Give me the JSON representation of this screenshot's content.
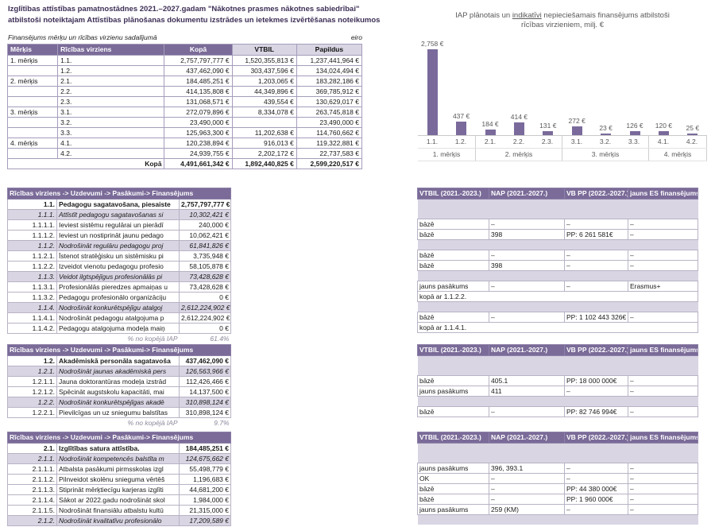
{
  "document": {
    "title_line1": "Izglītības attīstības pamatnostādnes 2021.–2027.gadam \"Nākotnes prasmes nākotnes sabiedrībai\"",
    "title_line2": "atbilstoši  noteiktajam Attīstības plānošanas dokumentu izstrādes un ietekmes izvērtēšanas noteikumos"
  },
  "summary_table": {
    "caption": "Finansējums mērķu un rīcības virzienu sadalījumā",
    "unit_note": "eiro",
    "headers": [
      "Mērķis",
      "Rīcības virziens",
      "Kopā",
      "VTBIL",
      "Papildus"
    ],
    "rows": [
      [
        "1. mērķis",
        "1.1.",
        "2,757,797,777 €",
        "1,520,355,813 €",
        "1,237,441,964 €"
      ],
      [
        "",
        "1.2.",
        "437,462,090 €",
        "303,437,596 €",
        "134,024,494 €"
      ],
      [
        "2. mērķis",
        "2.1.",
        "184,485,251 €",
        "1,203,065 €",
        "183,282,186 €"
      ],
      [
        "",
        "2.2.",
        "414,135,808 €",
        "44,349,896 €",
        "369,785,912 €"
      ],
      [
        "",
        "2.3.",
        "131,068,571 €",
        "439,554 €",
        "130,629,017 €"
      ],
      [
        "3. mērķis",
        "3.1.",
        "272,079,896 €",
        "8,334,078 €",
        "263,745,818 €"
      ],
      [
        "",
        "3.2.",
        "23,490,000 €",
        "",
        "23,490,000 €"
      ],
      [
        "",
        "3.3.",
        "125,963,300 €",
        "11,202,638 €",
        "114,760,662 €"
      ],
      [
        "4. mērķis",
        "4.1.",
        "120,238,894 €",
        "916,013 €",
        "119,322,881 €"
      ],
      [
        "",
        "4.2.",
        "24,939,755 €",
        "2,202,172 €",
        "22,737,583 €"
      ]
    ],
    "total_row": {
      "label": "Kopā",
      "values": [
        "4,491,661,342 €",
        "1,892,440,825 €",
        "2,599,220,517 €"
      ]
    }
  },
  "chart_data": {
    "type": "bar",
    "title_pre": "IAP plānotais un ",
    "title_underlined": "indikatīvi",
    "title_post": " nepieciešamais finansējums atbilstoši",
    "title_line2": "rīcības virzieniem, milj. €",
    "categories": [
      "1.1.",
      "1.2.",
      "2.1.",
      "2.2.",
      "2.3.",
      "3.1.",
      "3.2.",
      "3.3.",
      "4.1.",
      "4.2."
    ],
    "values": [
      2758,
      437,
      184,
      414,
      131,
      272,
      23,
      126,
      120,
      25
    ],
    "value_labels": [
      "2,758 €",
      "437 €",
      "184 €",
      "414 €",
      "131 €",
      "272 €",
      "23 €",
      "126 €",
      "120 €",
      "25 €"
    ],
    "groups": [
      {
        "label": "1. mērķis",
        "span": 2
      },
      {
        "label": "2. mērķis",
        "span": 3
      },
      {
        "label": "3. mērķis",
        "span": 3
      },
      {
        "label": "4. mērķis",
        "span": 2
      }
    ],
    "ylim": [
      0,
      2758
    ],
    "legend": "none",
    "bar_color": "#7a6a9b"
  },
  "detail_headers": {
    "left": "Rīcības virziens -> Uzdevumi -> Pasākumi-> Finansējums",
    "right": [
      "VTBIL (2021.-2023.)",
      "NAP (2021.-2027.)",
      "VB PP (2022.-2027.)",
      "jauns ES finansējums"
    ]
  },
  "blocks": [
    {
      "rows": [
        {
          "num": "1.1.",
          "desc": "Pedagogu sagatavošana, piesaiste",
          "amount": "2,757,797,777 €",
          "style": "main",
          "right": {
            "type": "shaded"
          }
        },
        {
          "num": "1.1.1.",
          "desc": "Attīstīt pedagogu sagatavošanas si",
          "amount": "10,302,421 €",
          "style": "sub",
          "right": {
            "type": "shaded"
          }
        },
        {
          "num": "1.1.1.1.",
          "desc": "Ieviest sistēmu regulārai un pierādī",
          "amount": "240,000 €",
          "style": "leaf",
          "right": {
            "type": "cells",
            "cells": [
              "bāzē",
              "–",
              "–",
              "–"
            ]
          }
        },
        {
          "num": "1.1.1.2.",
          "desc": "Ieviest un nostiprināt jaunu pedago",
          "amount": "10,062,421 €",
          "style": "leaf",
          "right": {
            "type": "cells",
            "cells": [
              "bāzē",
              "398",
              "PP: 6 261 581€",
              "–"
            ]
          }
        },
        {
          "num": "1.1.2.",
          "desc": "Nodrošināt regulāru pedagogu proj",
          "amount": "61,841,826 €",
          "style": "sub",
          "right": {
            "type": "shaded"
          }
        },
        {
          "num": "1.1.2.1.",
          "desc": "Īstenot stratēģisku un sistēmisku pi",
          "amount": "3,735,948 €",
          "style": "leaf",
          "right": {
            "type": "cells",
            "cells": [
              "bāzē",
              "–",
              "–",
              "–"
            ]
          }
        },
        {
          "num": "1.1.2.2.",
          "desc": "Izveidot vienotu pedagogu profesio",
          "amount": "58,105,878 €",
          "style": "leaf",
          "right": {
            "type": "cells",
            "cells": [
              "bāzē",
              "398",
              "–",
              "–"
            ]
          }
        },
        {
          "num": "1.1.3.",
          "desc": "Veidot ilgtspējīgus profesionālās pi",
          "amount": "73,428,628 €",
          "style": "sub",
          "right": {
            "type": "shaded"
          }
        },
        {
          "num": "1.1.3.1.",
          "desc": "Profesionālās pieredzes apmaiņas u",
          "amount": "73,428,628 €",
          "style": "leaf",
          "right": {
            "type": "cells",
            "cells": [
              "jauns pasākums",
              "–",
              "–",
              "Erasmus+"
            ]
          }
        },
        {
          "num": "1.1.3.2.",
          "desc": "Pedagogu profesionālo organizāciju",
          "amount": "0 €",
          "style": "leaf",
          "right": {
            "type": "span",
            "text": "kopā ar 1.1.2.2."
          }
        },
        {
          "num": "1.1.4.",
          "desc": "Nodrošināt konkurētspējīgu atalgoj",
          "amount": "2,612,224,902 €",
          "style": "sub",
          "right": {
            "type": "shaded"
          }
        },
        {
          "num": "1.1.4.1.",
          "desc": "Nodrošināt pedagogu atalgojuma p",
          "amount": "2,612,224,902 €",
          "style": "leaf",
          "right": {
            "type": "cells",
            "cells": [
              "bāzē",
              "–",
              "PP: 1 102 443 326€ (",
              "–"
            ]
          }
        },
        {
          "num": "1.1.4.2.",
          "desc": "Pedagogu atalgojuma modeļa maiņ",
          "amount": "0 €",
          "style": "leaf",
          "right": {
            "type": "span",
            "text": "kopā ar 1.1.4.1."
          }
        }
      ],
      "footer": {
        "label": "% no kopējā IAP",
        "value": "61.4%"
      }
    },
    {
      "rows": [
        {
          "num": "1.2.",
          "desc": "Akadēmiskā personāla sagatavoša",
          "amount": "437,462,090 €",
          "style": "main",
          "right": {
            "type": "shaded"
          }
        },
        {
          "num": "1.2.1.",
          "desc": "Nodrošināt jaunas akadēmiskā pers",
          "amount": "126,563,966 €",
          "style": "sub",
          "right": {
            "type": "shaded"
          }
        },
        {
          "num": "1.2.1.1.",
          "desc": "Jauna doktorantūras modeļa izstrād",
          "amount": "112,426,466 €",
          "style": "leaf",
          "right": {
            "type": "cells",
            "cells": [
              "bāzē",
              "405.1",
              "PP: 18 000 000€",
              "–"
            ]
          }
        },
        {
          "num": "1.2.1.2.",
          "desc": "Spēcināt augstskolu kapacitāti, mai",
          "amount": "14,137,500 €",
          "style": "leaf",
          "right": {
            "type": "cells",
            "cells": [
              "jauns pasākums",
              "411",
              "–",
              "–"
            ]
          }
        },
        {
          "num": "1.2.2.",
          "desc": "Nodrošināt konkurētspējīgas akadē",
          "amount": "310,898,124 €",
          "style": "sub",
          "right": {
            "type": "shaded"
          }
        },
        {
          "num": "1.2.2.1.",
          "desc": "Pievilcīgas un uz sniegumu balstītas",
          "amount": "310,898,124 €",
          "style": "leaf",
          "right": {
            "type": "cells",
            "cells": [
              "bāzē",
              "–",
              "PP: 82 746 994€",
              "–"
            ]
          }
        }
      ],
      "footer": {
        "label": "% no kopējā IAP",
        "value": "9.7%"
      }
    },
    {
      "rows": [
        {
          "num": "2.1.",
          "desc": "Izglītības satura attīstība.",
          "amount": "184,485,251 €",
          "style": "main",
          "right": {
            "type": "shaded"
          }
        },
        {
          "num": "2.1.1.",
          "desc": "Nodrošināt kompetencēs balstīta m",
          "amount": "124,675,662 €",
          "style": "sub",
          "right": {
            "type": "shaded"
          }
        },
        {
          "num": "2.1.1.1.",
          "desc": "Atbalsta pasākumi  pirmsskolas izgl",
          "amount": "55,498,779 €",
          "style": "leaf",
          "right": {
            "type": "cells",
            "cells": [
              "jauns pasākums",
              "396, 393.1",
              "–",
              "–"
            ]
          }
        },
        {
          "num": "2.1.1.2.",
          "desc": "Pilnveidot skolēnu snieguma vērtēš",
          "amount": "1,196,683 €",
          "style": "leaf",
          "right": {
            "type": "cells",
            "cells": [
              "OK",
              "–",
              "–",
              "–"
            ]
          }
        },
        {
          "num": "2.1.1.3.",
          "desc": "Stiprināt mērķtiecīgu karjeras izglīti",
          "amount": "44,681,200 €",
          "style": "leaf",
          "right": {
            "type": "cells",
            "cells": [
              "bāzē",
              "–",
              "PP: 44 380 000€",
              "–"
            ]
          }
        },
        {
          "num": "2.1.1.4.",
          "desc": "Sākot ar 2022.gadu nodrošināt skol",
          "amount": "1,984,000 €",
          "style": "leaf",
          "right": {
            "type": "cells",
            "cells": [
              "bāzē",
              "–",
              "PP: 1 960 000€",
              "–"
            ]
          }
        },
        {
          "num": "2.1.1.5.",
          "desc": "Nodrošināt finansiālu atbalstu kultū",
          "amount": "21,315,000 €",
          "style": "leaf",
          "right": {
            "type": "cells",
            "cells": [
              "jauns pasākums",
              "259 (KM)",
              "–",
              "–"
            ]
          }
        },
        {
          "num": "2.1.2.",
          "desc": "Nodrošināt kvalitatīvu profesionālo",
          "amount": "17,209,589 €",
          "style": "sub",
          "right": {
            "type": "shaded"
          }
        }
      ],
      "footer": null
    }
  ],
  "colors": {
    "header_purple": "#7a6b98",
    "lavender_shade": "#d9d5e3",
    "bar_purple": "#7a6a9b",
    "title_text": "#3d2f56"
  }
}
